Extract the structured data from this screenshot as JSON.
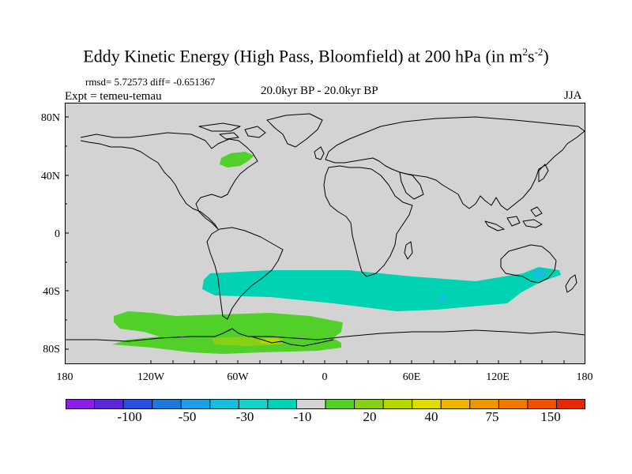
{
  "title": {
    "main": "Eddy Kinetic Energy (High Pass, Bloomfield) at 200 hPa (in m",
    "sup1": "2",
    "mid": "s",
    "sup2": "-2",
    "end": ")"
  },
  "stats": "rmsd= 5.72573 diff= -0.651367",
  "expt": "Expt = temeu-temau",
  "period": "20.0kyr BP - 20.0kyr BP",
  "season": "JJA",
  "y_axis": [
    "80N",
    "40N",
    "0",
    "40S",
    "80S"
  ],
  "x_axis": [
    "180",
    "120W",
    "60W",
    "0",
    "60E",
    "120E",
    "180"
  ],
  "colorbar": {
    "colors": [
      "#8a1ee6",
      "#5a28d8",
      "#2850dc",
      "#1e78dc",
      "#1e9ee6",
      "#18bcdc",
      "#14d2c8",
      "#00d2b4",
      "#d3d3d3",
      "#50d028",
      "#88d014",
      "#b4d800",
      "#e0dc00",
      "#f0b400",
      "#f09600",
      "#f07800",
      "#f05000",
      "#e62800"
    ],
    "labels": [
      "-100",
      "-50",
      "-30",
      "-10",
      "20",
      "40",
      "75",
      "150"
    ]
  },
  "map_colors": {
    "land_ocean": "#d3d3d3",
    "neg_10": "#00d2b4",
    "neg_30": "#18bcdc",
    "pos_20": "#50d028",
    "pos_40": "#88d014",
    "pos_60": "#b4d800"
  }
}
